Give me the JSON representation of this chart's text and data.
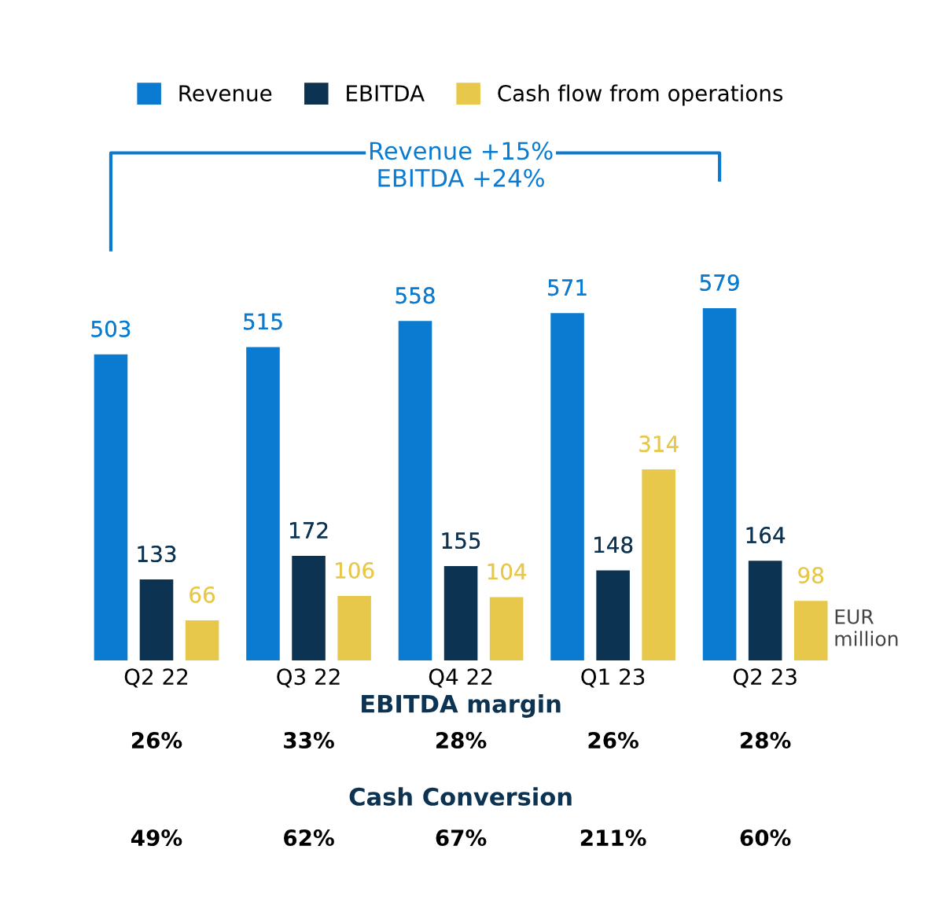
{
  "chart_data": {
    "type": "bar",
    "categories": [
      "Q2 22",
      "Q3 22",
      "Q4 22",
      "Q1 23",
      "Q2 23"
    ],
    "series": [
      {
        "name": "Revenue",
        "color": "#0a7bd0",
        "values": [
          503,
          515,
          558,
          571,
          579
        ]
      },
      {
        "name": "EBITDA",
        "color": "#0d3352",
        "values": [
          133,
          172,
          155,
          148,
          164
        ]
      },
      {
        "name": "Cash flow from operations",
        "color": "#e8c84a",
        "values": [
          66,
          106,
          104,
          314,
          98
        ]
      }
    ],
    "data_labels": true,
    "legend": "top",
    "grid": false,
    "tick_labels": "x",
    "annotations": [
      "Revenue +15%",
      "EBITDA +24%",
      "EUR\nmillion",
      "EBITDA margin",
      "26%",
      "33%",
      "28%",
      "26%",
      "28%",
      "Cash Conversion",
      "49%",
      "62%",
      "67%",
      "211%",
      "60%"
    ]
  }
}
